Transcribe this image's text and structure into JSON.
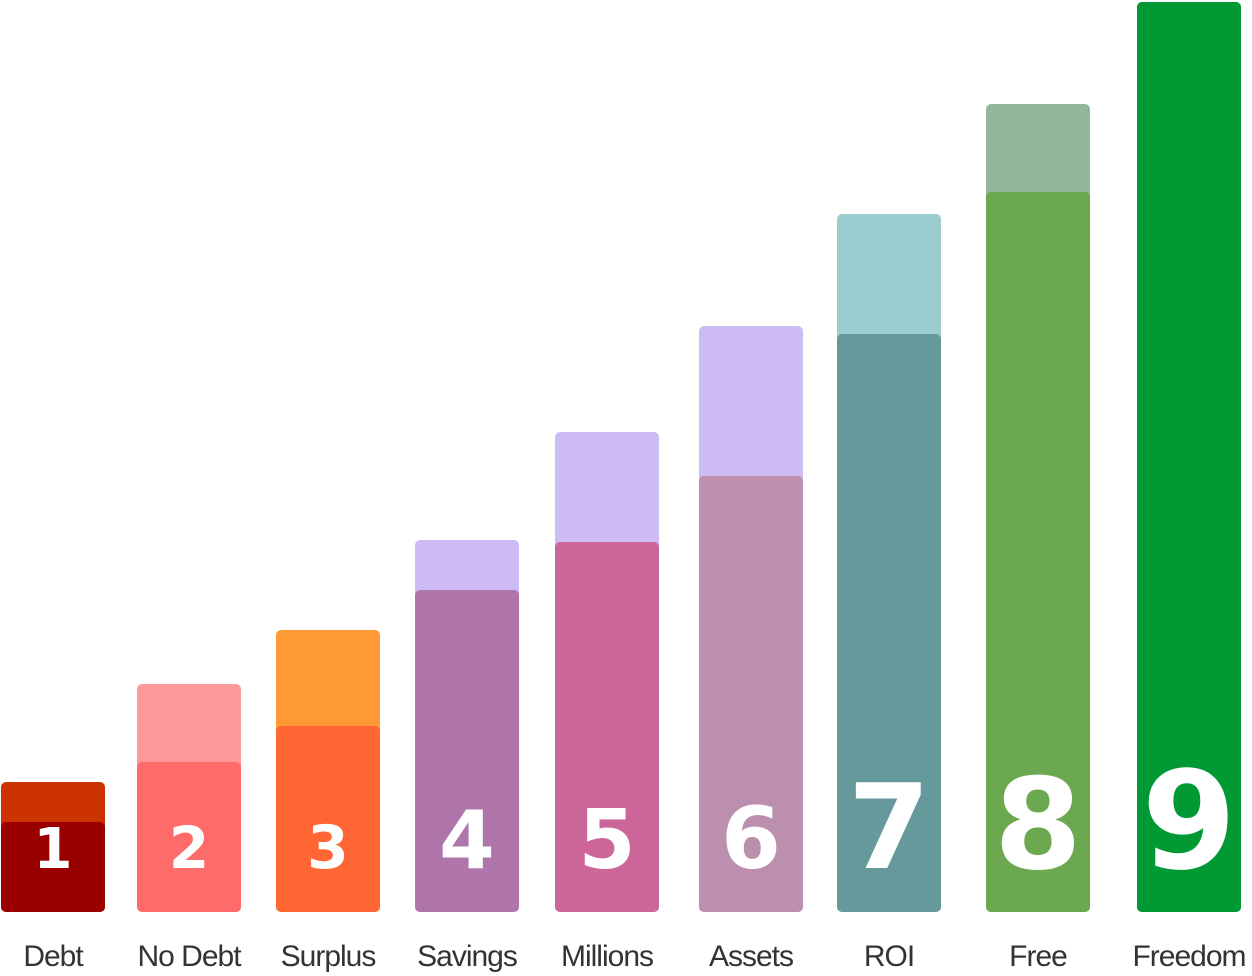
{
  "chart_data": {
    "type": "bar",
    "title": "",
    "xlabel": "",
    "ylabel": "",
    "ylim": [
      0,
      910
    ],
    "categories": [
      "Debt",
      "No Debt",
      "Surplus",
      "Savings",
      "Millions",
      "Assets",
      "ROI",
      "Free",
      "Freedom"
    ],
    "step_numbers": [
      "1",
      "2",
      "3",
      "4",
      "5",
      "6",
      "7",
      "8",
      "9"
    ],
    "series": [
      {
        "values": [
          90,
          150,
          186,
          322,
          370,
          436,
          578,
          720,
          910
        ]
      },
      {
        "values": [
          130,
          228,
          282,
          372,
          480,
          586,
          698,
          808,
          910
        ]
      }
    ],
    "colors": {
      "base": [
        "#9a0000",
        "#ff6a6a",
        "#ff6633",
        "#b076ac",
        "#cc6699",
        "#bb8fad",
        "#66999b",
        "#6ba84f",
        "#009933"
      ],
      "top": [
        "#cc3300",
        "#ff9999",
        "#ff9933",
        "#ccbbf5",
        "#ccbbf5",
        "#ccbbf5",
        "#9bcccf",
        "#93b899",
        "#009933"
      ]
    },
    "grid": false,
    "legend": "none"
  }
}
